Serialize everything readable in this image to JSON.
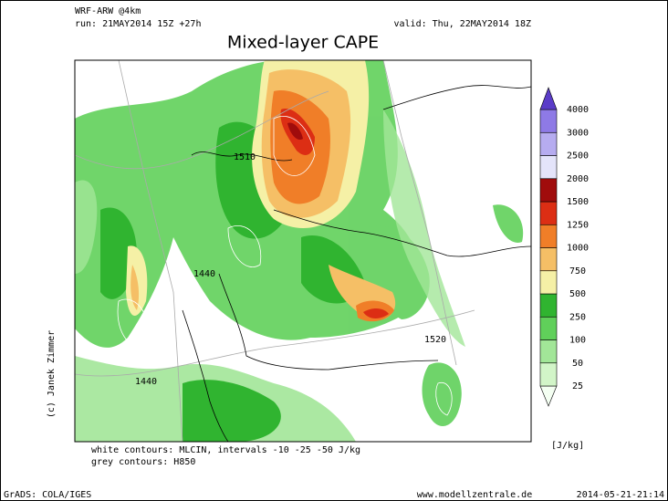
{
  "header": {
    "model": "WRF-ARW @4km",
    "run": "run: 21MAY2014 15Z +27h",
    "valid": "valid: Thu, 22MAY2014 18Z",
    "title": "Mixed-layer CAPE"
  },
  "colorbar": {
    "levels": [
      25,
      50,
      100,
      250,
      500,
      750,
      1000,
      1250,
      1500,
      2000,
      2500,
      3000,
      4000
    ],
    "colors": [
      "#f4fff2",
      "#d2f5c8",
      "#a2e698",
      "#60d05a",
      "#30b430",
      "#f5f0a6",
      "#f5bf66",
      "#f07e28",
      "#dc2e14",
      "#a00c0c",
      "#e4e4fa",
      "#b6acf0",
      "#8e7ae6",
      "#5a3cc8"
    ],
    "unit": "[J/kg]"
  },
  "map": {
    "credit": "(c) Janek Zimmer",
    "contour_labels": [
      "1510",
      "1440",
      "1440",
      "1520"
    ]
  },
  "legend": {
    "white": "white contours: MLCIN, intervals -10 -25 -50 J/kg",
    "grey": "grey contours: H850"
  },
  "footer": {
    "left": "GrADS: COLA/IGES",
    "center": "www.modellzentrale.de",
    "right": "2014-05-21-21:14"
  }
}
